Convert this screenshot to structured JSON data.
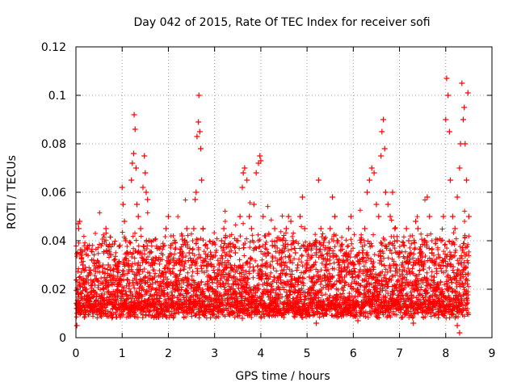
{
  "chart_data": {
    "type": "scatter",
    "title": "Day 042 of 2015, Rate Of TEC Index for receiver sofi",
    "xlabel": "GPS time / hours",
    "ylabel": "ROTI / TECUs",
    "xlim": [
      0,
      9
    ],
    "ylim": [
      0,
      0.12
    ],
    "x_ticks": [
      0,
      1,
      2,
      3,
      4,
      5,
      6,
      7,
      8,
      9
    ],
    "y_ticks": [
      0,
      0.02,
      0.04,
      0.06,
      0.08,
      0.1,
      0.12
    ],
    "x_tick_labels": [
      "0",
      "1",
      "2",
      "3",
      "4",
      "5",
      "6",
      "7",
      "8",
      "9"
    ],
    "y_tick_labels": [
      "0",
      "0.02",
      "0.04",
      "0.06",
      "0.08",
      "0.1",
      "0.12"
    ],
    "grid": true,
    "marker": "plus",
    "marker_color": "#ff0000",
    "series": [
      {
        "name": "ROTI",
        "points": [
          [
            0.02,
            0.005
          ],
          [
            0.03,
            0.012
          ],
          [
            0.05,
            0.018
          ],
          [
            0.05,
            0.047
          ],
          [
            0.06,
            0.045
          ],
          [
            0.08,
            0.048
          ],
          [
            0.1,
            0.035
          ],
          [
            0.12,
            0.033
          ],
          [
            0.15,
            0.03
          ],
          [
            0.18,
            0.022
          ],
          [
            0.22,
            0.02
          ],
          [
            0.25,
            0.016
          ],
          [
            0.3,
            0.015
          ],
          [
            0.35,
            0.012
          ],
          [
            0.4,
            0.014
          ],
          [
            0.45,
            0.018
          ],
          [
            0.5,
            0.012
          ],
          [
            0.55,
            0.01
          ],
          [
            0.6,
            0.02
          ],
          [
            0.65,
            0.045
          ],
          [
            0.7,
            0.03
          ],
          [
            0.75,
            0.018
          ],
          [
            0.8,
            0.025
          ],
          [
            0.85,
            0.03
          ],
          [
            0.9,
            0.022
          ],
          [
            0.95,
            0.038
          ],
          [
            1.0,
            0.062
          ],
          [
            1.02,
            0.055
          ],
          [
            1.05,
            0.048
          ],
          [
            1.08,
            0.04
          ],
          [
            1.1,
            0.035
          ],
          [
            1.12,
            0.03
          ],
          [
            1.15,
            0.028
          ],
          [
            1.2,
            0.065
          ],
          [
            1.22,
            0.072
          ],
          [
            1.25,
            0.076
          ],
          [
            1.26,
            0.092
          ],
          [
            1.28,
            0.086
          ],
          [
            1.3,
            0.07
          ],
          [
            1.32,
            0.055
          ],
          [
            1.35,
            0.05
          ],
          [
            1.4,
            0.045
          ],
          [
            1.45,
            0.062
          ],
          [
            1.48,
            0.075
          ],
          [
            1.5,
            0.068
          ],
          [
            1.52,
            0.06
          ],
          [
            1.55,
            0.057
          ],
          [
            1.58,
            0.04
          ],
          [
            1.6,
            0.035
          ],
          [
            1.65,
            0.03
          ],
          [
            1.7,
            0.025
          ],
          [
            1.75,
            0.02
          ],
          [
            1.8,
            0.015
          ],
          [
            1.85,
            0.012
          ],
          [
            1.9,
            0.018
          ],
          [
            1.95,
            0.045
          ],
          [
            2.0,
            0.05
          ],
          [
            2.05,
            0.038
          ],
          [
            2.1,
            0.032
          ],
          [
            2.15,
            0.025
          ],
          [
            2.2,
            0.02
          ],
          [
            2.25,
            0.035
          ],
          [
            2.3,
            0.042
          ],
          [
            2.35,
            0.04
          ],
          [
            2.4,
            0.045
          ],
          [
            2.45,
            0.035
          ],
          [
            2.5,
            0.03
          ],
          [
            2.55,
            0.045
          ],
          [
            2.58,
            0.057
          ],
          [
            2.6,
            0.06
          ],
          [
            2.62,
            0.083
          ],
          [
            2.65,
            0.089
          ],
          [
            2.66,
            0.1
          ],
          [
            2.68,
            0.085
          ],
          [
            2.7,
            0.078
          ],
          [
            2.72,
            0.065
          ],
          [
            2.75,
            0.045
          ],
          [
            2.8,
            0.038
          ],
          [
            2.85,
            0.03
          ],
          [
            2.9,
            0.025
          ],
          [
            2.95,
            0.02
          ],
          [
            3.0,
            0.018
          ],
          [
            3.05,
            0.015
          ],
          [
            3.1,
            0.03
          ],
          [
            3.15,
            0.04
          ],
          [
            3.2,
            0.045
          ],
          [
            3.25,
            0.03
          ],
          [
            3.3,
            0.025
          ],
          [
            3.35,
            0.02
          ],
          [
            3.4,
            0.028
          ],
          [
            3.45,
            0.035
          ],
          [
            3.5,
            0.04
          ],
          [
            3.55,
            0.05
          ],
          [
            3.6,
            0.062
          ],
          [
            3.62,
            0.068
          ],
          [
            3.65,
            0.07
          ],
          [
            3.7,
            0.065
          ],
          [
            3.75,
            0.05
          ],
          [
            3.8,
            0.045
          ],
          [
            3.85,
            0.055
          ],
          [
            3.9,
            0.068
          ],
          [
            3.95,
            0.072
          ],
          [
            3.98,
            0.075
          ],
          [
            4.0,
            0.073
          ],
          [
            4.05,
            0.05
          ],
          [
            4.1,
            0.042
          ],
          [
            4.15,
            0.035
          ],
          [
            4.2,
            0.03
          ],
          [
            4.25,
            0.038
          ],
          [
            4.3,
            0.045
          ],
          [
            4.35,
            0.04
          ],
          [
            4.4,
            0.035
          ],
          [
            4.45,
            0.03
          ],
          [
            4.5,
            0.028
          ],
          [
            4.55,
            0.045
          ],
          [
            4.6,
            0.05
          ],
          [
            4.65,
            0.048
          ],
          [
            4.7,
            0.04
          ],
          [
            4.75,
            0.035
          ],
          [
            4.8,
            0.03
          ],
          [
            4.85,
            0.05
          ],
          [
            4.9,
            0.058
          ],
          [
            4.95,
            0.045
          ],
          [
            5.0,
            0.03
          ],
          [
            5.05,
            0.025
          ],
          [
            5.1,
            0.02
          ],
          [
            5.15,
            0.03
          ],
          [
            5.2,
            0.035
          ],
          [
            5.25,
            0.065
          ],
          [
            5.3,
            0.045
          ],
          [
            5.35,
            0.038
          ],
          [
            5.4,
            0.03
          ],
          [
            5.45,
            0.025
          ],
          [
            5.5,
            0.045
          ],
          [
            5.55,
            0.058
          ],
          [
            5.6,
            0.05
          ],
          [
            5.65,
            0.04
          ],
          [
            5.7,
            0.03
          ],
          [
            5.75,
            0.025
          ],
          [
            5.8,
            0.028
          ],
          [
            5.85,
            0.035
          ],
          [
            5.9,
            0.045
          ],
          [
            5.95,
            0.05
          ],
          [
            6.0,
            0.03
          ],
          [
            6.05,
            0.025
          ],
          [
            6.1,
            0.02
          ],
          [
            6.15,
            0.028
          ],
          [
            6.2,
            0.035
          ],
          [
            6.25,
            0.045
          ],
          [
            6.3,
            0.06
          ],
          [
            6.35,
            0.065
          ],
          [
            6.4,
            0.07
          ],
          [
            6.45,
            0.068
          ],
          [
            6.5,
            0.055
          ],
          [
            6.55,
            0.05
          ],
          [
            6.6,
            0.075
          ],
          [
            6.62,
            0.085
          ],
          [
            6.65,
            0.09
          ],
          [
            6.68,
            0.078
          ],
          [
            6.7,
            0.06
          ],
          [
            6.75,
            0.055
          ],
          [
            6.8,
            0.05
          ],
          [
            6.85,
            0.06
          ],
          [
            6.9,
            0.045
          ],
          [
            6.95,
            0.04
          ],
          [
            7.0,
            0.035
          ],
          [
            7.05,
            0.03
          ],
          [
            7.1,
            0.038
          ],
          [
            7.15,
            0.045
          ],
          [
            7.2,
            0.04
          ],
          [
            7.25,
            0.035
          ],
          [
            7.3,
            0.03
          ],
          [
            7.35,
            0.048
          ],
          [
            7.4,
            0.045
          ],
          [
            7.45,
            0.035
          ],
          [
            7.5,
            0.03
          ],
          [
            7.55,
            0.04
          ],
          [
            7.6,
            0.058
          ],
          [
            7.65,
            0.05
          ],
          [
            7.7,
            0.035
          ],
          [
            7.75,
            0.025
          ],
          [
            7.8,
            0.02
          ],
          [
            7.85,
            0.03
          ],
          [
            7.9,
            0.04
          ],
          [
            7.95,
            0.05
          ],
          [
            8.0,
            0.09
          ],
          [
            8.02,
            0.107
          ],
          [
            8.05,
            0.1
          ],
          [
            8.08,
            0.085
          ],
          [
            8.1,
            0.065
          ],
          [
            8.15,
            0.05
          ],
          [
            8.2,
            0.045
          ],
          [
            8.25,
            0.058
          ],
          [
            8.3,
            0.07
          ],
          [
            8.32,
            0.08
          ],
          [
            8.35,
            0.105
          ],
          [
            8.38,
            0.09
          ],
          [
            8.4,
            0.095
          ],
          [
            8.42,
            0.08
          ],
          [
            8.45,
            0.065
          ],
          [
            8.48,
            0.101
          ],
          [
            8.5,
            0.05
          ],
          [
            8.3,
            0.002
          ],
          [
            8.25,
            0.005
          ],
          [
            3.6,
            0.008
          ],
          [
            5.2,
            0.006
          ],
          [
            6.1,
            0.007
          ],
          [
            7.3,
            0.006
          ]
        ]
      }
    ]
  }
}
